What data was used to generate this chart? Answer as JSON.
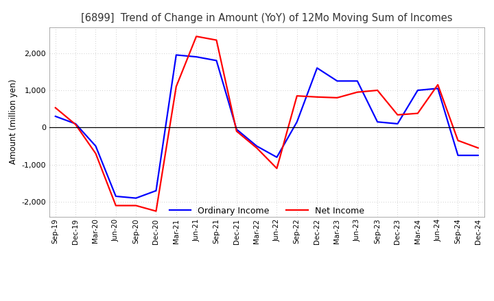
{
  "title": "[6899]  Trend of Change in Amount (YoY) of 12Mo Moving Sum of Incomes",
  "ylabel": "Amount (million yen)",
  "x_labels": [
    "Sep-19",
    "Dec-19",
    "Mar-20",
    "Jun-20",
    "Sep-20",
    "Dec-20",
    "Mar-21",
    "Jun-21",
    "Sep-21",
    "Dec-21",
    "Mar-22",
    "Jun-22",
    "Sep-22",
    "Dec-22",
    "Mar-23",
    "Jun-23",
    "Sep-23",
    "Dec-23",
    "Mar-24",
    "Jun-24",
    "Sep-24",
    "Dec-24"
  ],
  "ordinary_income": [
    300,
    100,
    -500,
    -1850,
    -1900,
    -1700,
    1950,
    1900,
    1800,
    -50,
    -500,
    -800,
    150,
    1600,
    1250,
    1250,
    150,
    100,
    1000,
    1050,
    -750,
    -750
  ],
  "net_income": [
    530,
    80,
    -700,
    -2100,
    -2100,
    -2250,
    1100,
    2450,
    2350,
    -100,
    -550,
    -1100,
    850,
    820,
    800,
    950,
    1000,
    340,
    380,
    1150,
    -350,
    -550
  ],
  "ordinary_color": "#0000ff",
  "net_color": "#ff0000",
  "ylim": [
    -2400,
    2700
  ],
  "yticks": [
    -2000,
    -1000,
    0,
    1000,
    2000
  ],
  "background_color": "#ffffff",
  "grid_color": "#bbbbbb"
}
